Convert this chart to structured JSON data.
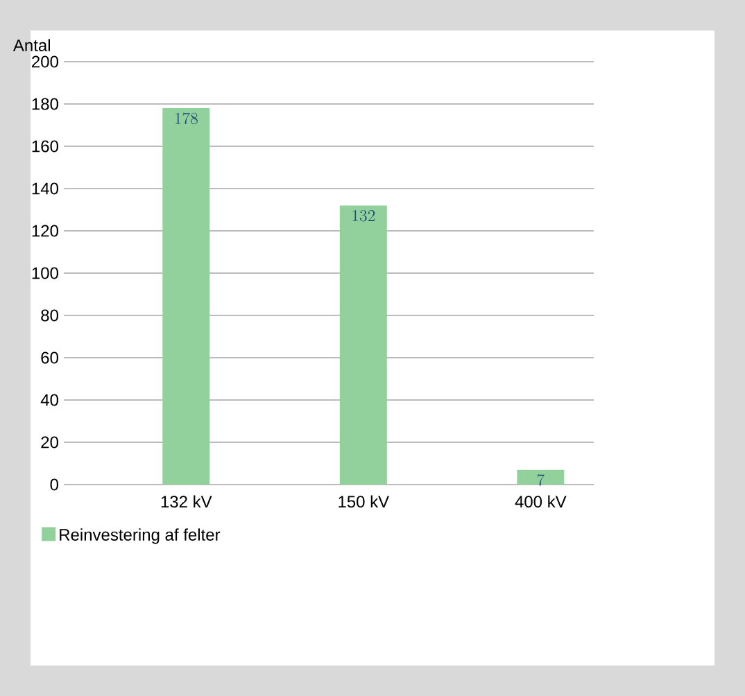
{
  "chart_data": {
    "type": "bar",
    "ylabel": "Antal",
    "categories": [
      "132 kV",
      "150 kV",
      "400 kV"
    ],
    "series": [
      {
        "name": "Reinvestering af felter",
        "color": "#92d19c",
        "values": [
          178,
          132,
          7
        ]
      }
    ],
    "ylim": [
      0,
      200
    ],
    "yticks": [
      0,
      20,
      40,
      60,
      80,
      100,
      120,
      140,
      160,
      180,
      200
    ],
    "grid": "y",
    "legend": "bottom left",
    "data_labels": true
  }
}
